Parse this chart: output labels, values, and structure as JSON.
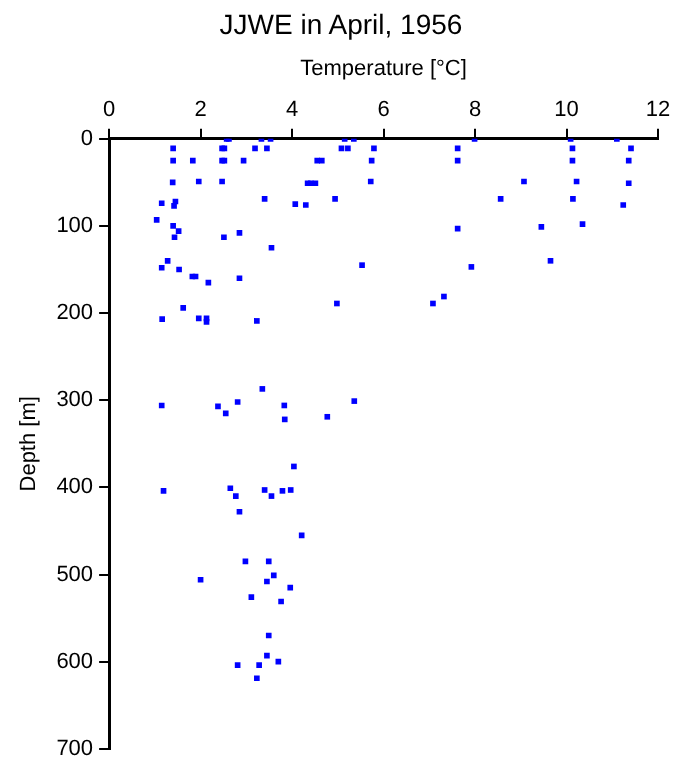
{
  "chart_data": {
    "type": "scatter",
    "title": "JJWE in April, 1956",
    "xlabel": "Temperature [°C]",
    "ylabel": "Depth [m]",
    "xlim": [
      0,
      12
    ],
    "xticks": [
      0,
      2,
      4,
      6,
      8,
      10,
      12
    ],
    "ylim": [
      700,
      0
    ],
    "yticks": [
      0,
      100,
      200,
      300,
      400,
      500,
      600,
      700
    ],
    "grid": false,
    "legend": false,
    "marker": "square",
    "series": [
      {
        "color": "#0000ff",
        "x": [
          2.57,
          2.62,
          3.33,
          3.53,
          5.15,
          5.35,
          7.99,
          10.09,
          11.1,
          1.4,
          2.47,
          2.52,
          3.19,
          3.45,
          5.08,
          5.22,
          5.79,
          7.62,
          10.13,
          11.41,
          1.4,
          1.83,
          2.47,
          2.52,
          2.94,
          4.55,
          4.65,
          5.74,
          7.62,
          10.13,
          11.36,
          1.39,
          1.96,
          2.47,
          4.34,
          4.41,
          4.51,
          5.72,
          9.07,
          10.22,
          11.36,
          1.15,
          1.45,
          1.42,
          3.4,
          4.07,
          4.3,
          4.94,
          8.56,
          10.14,
          11.24,
          1.04,
          1.4,
          1.52,
          1.43,
          2.85,
          2.51,
          3.55,
          7.62,
          9.45,
          10.35,
          1.28,
          1.15,
          1.53,
          1.82,
          1.89,
          2.17,
          2.85,
          5.53,
          7.92,
          9.65,
          1.62,
          1.96,
          2.13,
          2.13,
          1.16,
          3.23,
          4.98,
          7.32,
          7.08,
          3.35,
          1.15,
          2.38,
          2.55,
          2.81,
          3.83,
          3.84,
          4.77,
          5.36,
          4.04,
          1.19,
          2.65,
          2.77,
          3.4,
          3.55,
          3.79,
          3.97,
          2.85,
          4.21,
          2.98,
          3.49,
          2.0,
          3.6,
          3.45,
          3.96,
          3.11,
          3.76,
          3.49,
          3.45,
          2.81,
          3.28,
          3.7,
          3.23
        ],
        "values": [
          0,
          0,
          0,
          0,
          0,
          0,
          0,
          0,
          0,
          11,
          11,
          11,
          11,
          11,
          11,
          11,
          11,
          11,
          11,
          11,
          25,
          25,
          25,
          25,
          25,
          25,
          25,
          25,
          25,
          25,
          25,
          50,
          49,
          49,
          51,
          51,
          51,
          49,
          49,
          49,
          51,
          74,
          72,
          77,
          69,
          75,
          76,
          69,
          69,
          69,
          76,
          93,
          100,
          106,
          113,
          108,
          113,
          125,
          103,
          101,
          98,
          140,
          148,
          150,
          158,
          158,
          165,
          160,
          145,
          147,
          140,
          194,
          206,
          206,
          210,
          207,
          209,
          189,
          181,
          189,
          287,
          306,
          307,
          315,
          302,
          306,
          322,
          319,
          301,
          376,
          404,
          401,
          410,
          403,
          410,
          404,
          403,
          428,
          455,
          485,
          485,
          506,
          501,
          508,
          515,
          526,
          531,
          570,
          593,
          604,
          604,
          600,
          619
        ]
      }
    ]
  }
}
